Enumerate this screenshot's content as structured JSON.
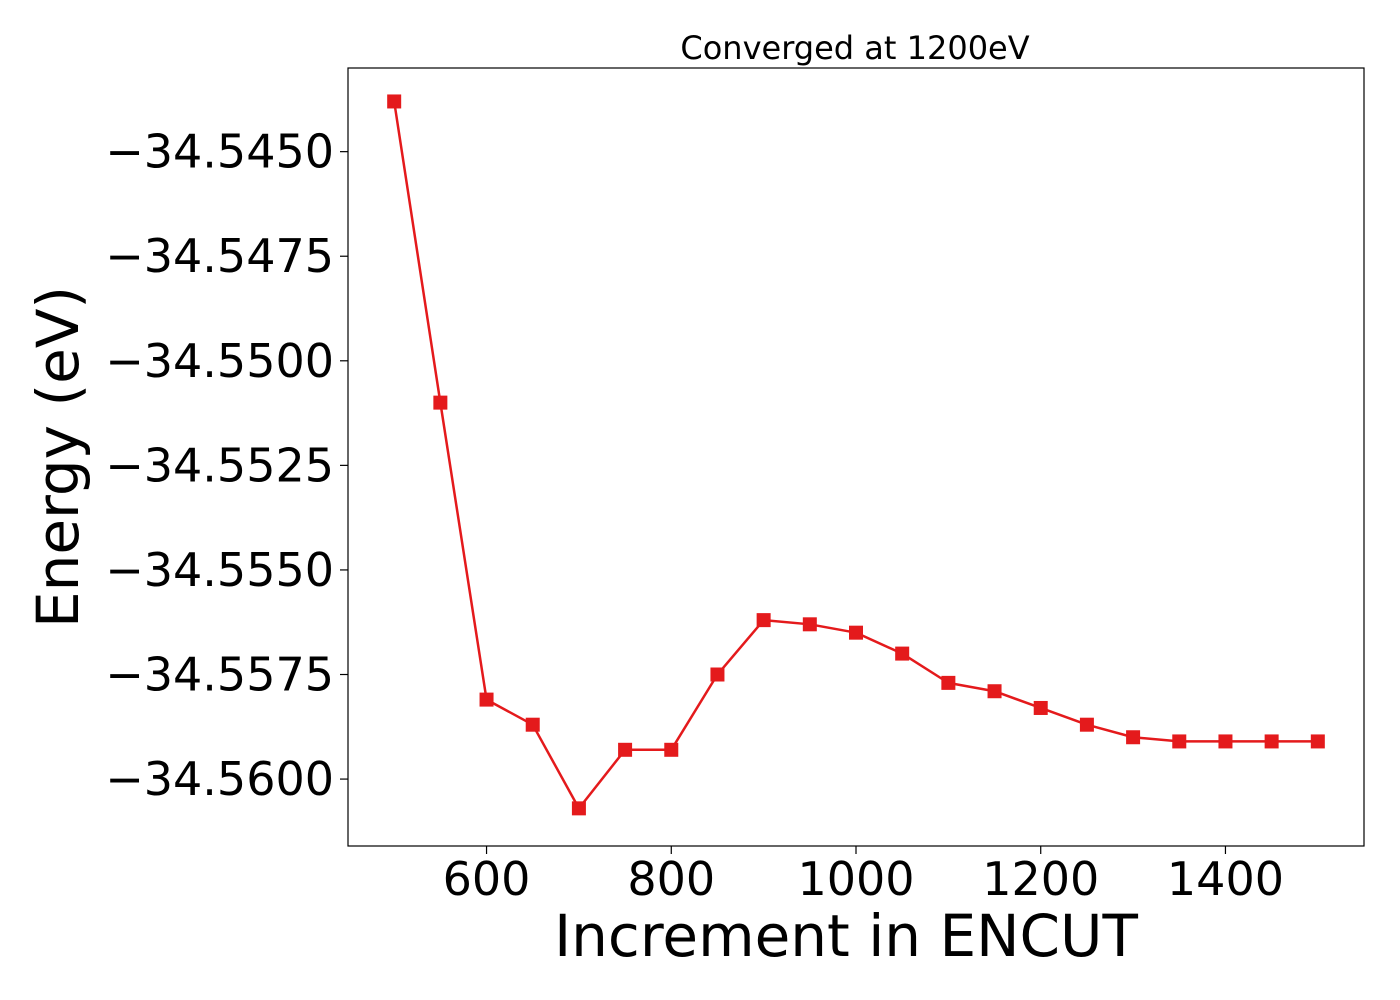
{
  "chart_data": {
    "type": "line",
    "title": "Converged at 1200eV",
    "xlabel": "Increment in ENCUT",
    "ylabel": "Energy (eV)",
    "xlim": [
      450,
      1550
    ],
    "ylim": [
      -34.5616,
      -34.543
    ],
    "xticks": [
      600,
      800,
      1000,
      1200,
      1400
    ],
    "xtick_labels": [
      "600",
      "800",
      "1000",
      "1200",
      "1400"
    ],
    "yticks": [
      -34.545,
      -34.5475,
      -34.55,
      -34.5525,
      -34.555,
      -34.5575,
      -34.56
    ],
    "ytick_labels": [
      "−34.5450",
      "−34.5475",
      "−34.5500",
      "−34.5525",
      "−34.5550",
      "−34.5575",
      "−34.5600"
    ],
    "grid": false,
    "series": [
      {
        "color": "#e41a1c",
        "marker": "square",
        "x": [
          500,
          550,
          600,
          650,
          700,
          750,
          800,
          850,
          900,
          950,
          1000,
          1050,
          1100,
          1150,
          1200,
          1250,
          1300,
          1350,
          1400,
          1450,
          1500
        ],
        "y": [
          -34.5438,
          -34.551,
          -34.5581,
          -34.5587,
          -34.5607,
          -34.5593,
          -34.5593,
          -34.5575,
          -34.5562,
          -34.5563,
          -34.5565,
          -34.557,
          -34.5577,
          -34.5579,
          -34.5583,
          -34.5587,
          -34.559,
          -34.5591,
          -34.5591,
          -34.5591,
          -34.5591
        ]
      }
    ]
  }
}
